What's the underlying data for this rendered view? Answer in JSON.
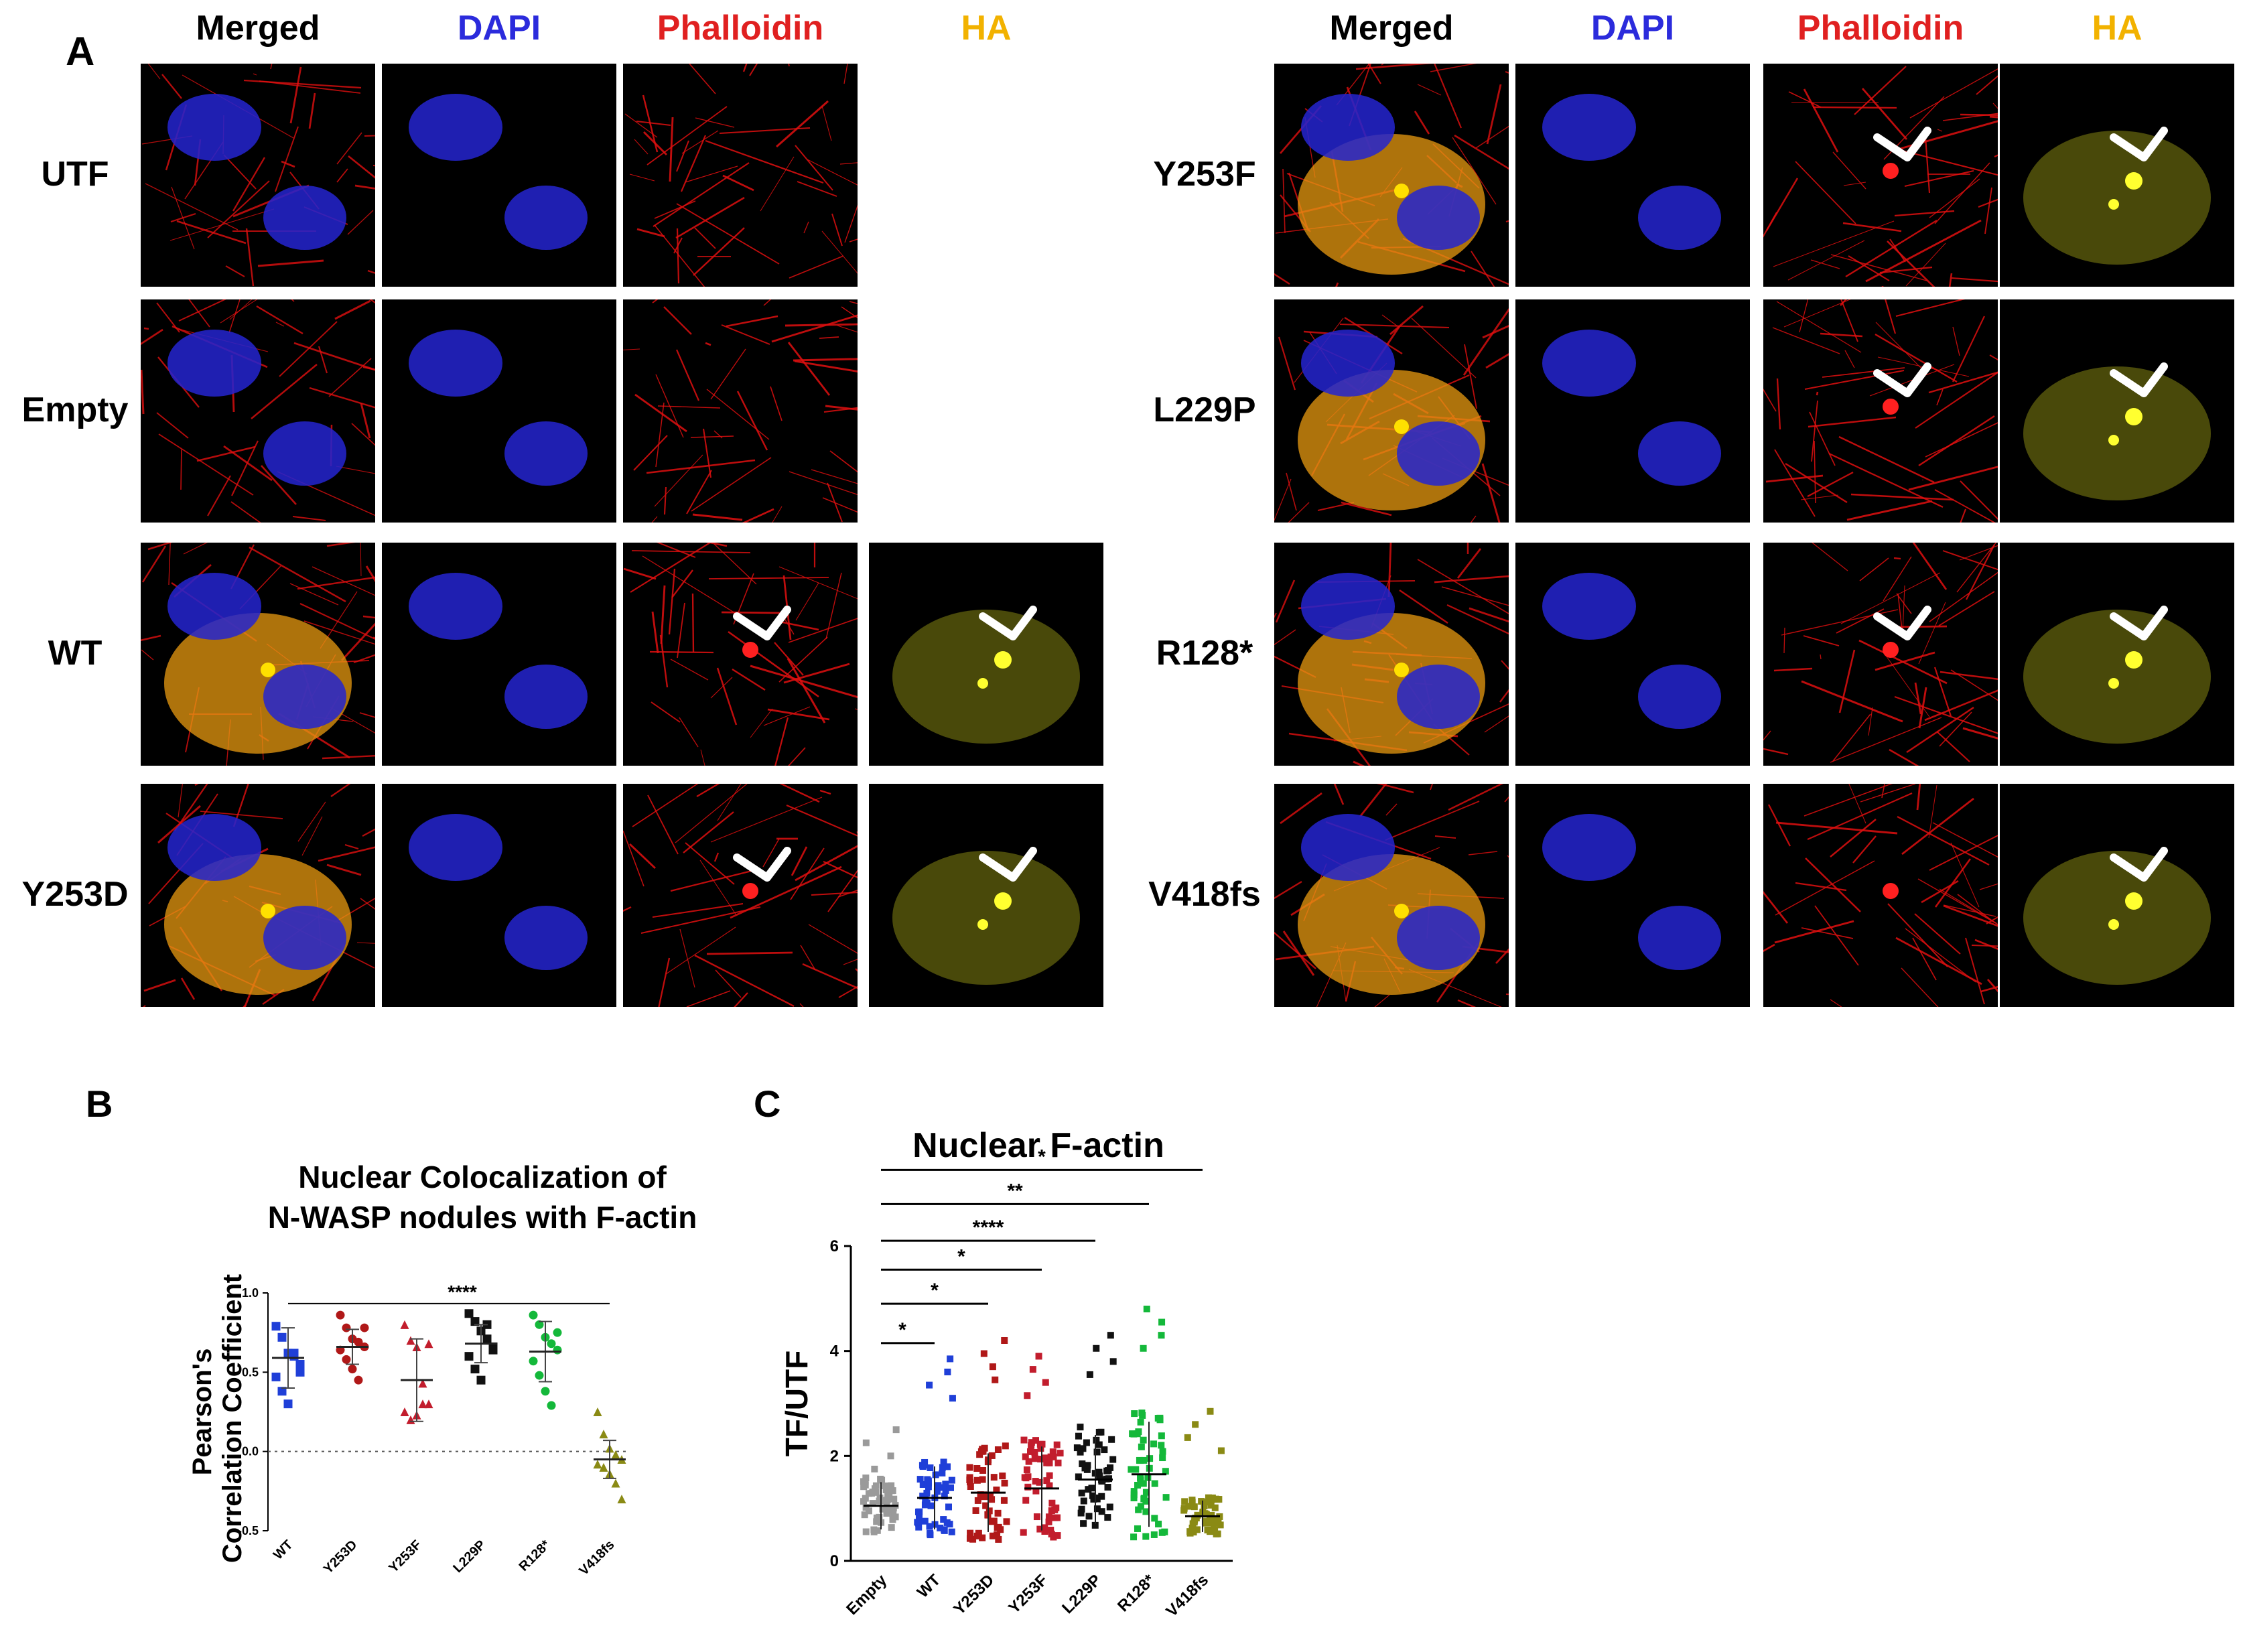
{
  "panel_a": {
    "letter": "A",
    "left_headers": [
      "Merged",
      "DAPI",
      "Phalloidin",
      "HA"
    ],
    "right_headers": [
      "Merged",
      "DAPI",
      "Phalloidin",
      "HA"
    ],
    "left_rows": [
      "UTF",
      "Empty",
      "WT",
      "Y253D"
    ],
    "right_rows": [
      "Y253F",
      "L229P",
      "R128*",
      "V418fs"
    ],
    "colors": {
      "merged": "#000000",
      "dapi": "#2b2bdc",
      "phalloidin": "#e02020",
      "ha": "#f2b200"
    }
  },
  "panel_b": {
    "letter": "B",
    "title_line1": "Nuclear Colocalization of",
    "title_line2": "N-WASP nodules with F-actin",
    "ylabel_line1": "Pearson's",
    "ylabel_line2": "Correlation Coefficient",
    "significance": "****"
  },
  "panel_c": {
    "letter": "C",
    "title": "Nuclear F-actin",
    "ylabel": "TF/UTF",
    "significance": [
      "*",
      "*",
      "*",
      "****",
      "**",
      "*"
    ]
  },
  "chart_data": [
    {
      "type": "scatter",
      "title": "Nuclear Colocalization of N-WASP nodules with F-actin",
      "ylabel": "Pearson's Correlation Coefficient",
      "ylim": [
        -0.5,
        1.0
      ],
      "yticks": [
        "-0.5",
        "0.0",
        "0.5",
        "1.0"
      ],
      "categories": [
        "WT",
        "Y253D",
        "Y253F",
        "L229P",
        "R128*",
        "V418fs"
      ],
      "colors": [
        "#1f3fd8",
        "#b01818",
        "#c21d2d",
        "#111111",
        "#14b83a",
        "#8a8a14"
      ],
      "means": [
        0.59,
        0.66,
        0.45,
        0.68,
        0.63,
        -0.05
      ],
      "sd": [
        0.19,
        0.11,
        0.26,
        0.12,
        0.19,
        0.12
      ],
      "points": [
        [
          0.79,
          0.72,
          0.62,
          0.6,
          0.55,
          0.47,
          0.38,
          0.3,
          0.62,
          0.5
        ],
        [
          0.86,
          0.78,
          0.71,
          0.69,
          0.66,
          0.64,
          0.58,
          0.52,
          0.45,
          0.78
        ],
        [
          0.8,
          0.7,
          0.66,
          0.43,
          0.3,
          0.25,
          0.2,
          0.23,
          0.3,
          0.68
        ],
        [
          0.87,
          0.82,
          0.76,
          0.71,
          0.66,
          0.6,
          0.52,
          0.45,
          0.8,
          0.64
        ],
        [
          0.86,
          0.8,
          0.72,
          0.68,
          0.64,
          0.57,
          0.48,
          0.38,
          0.29,
          0.75
        ],
        [
          0.25,
          0.11,
          0.02,
          -0.02,
          -0.05,
          -0.08,
          -0.1,
          -0.14,
          -0.2,
          -0.3
        ]
      ],
      "annotations": [
        "****"
      ]
    },
    {
      "type": "scatter",
      "title": "Nuclear F-actin",
      "ylabel": "TF/UTF",
      "ylim": [
        0,
        6
      ],
      "yticks": [
        "0",
        "2",
        "4",
        "6"
      ],
      "categories": [
        "Empty",
        "WT",
        "Y253D",
        "Y253F",
        "L229P",
        "R128*",
        "V418fs"
      ],
      "colors": [
        "#9a9a9a",
        "#1f3fd8",
        "#b01818",
        "#c21d2d",
        "#111111",
        "#14b83a",
        "#8a8a14"
      ],
      "means": [
        1.05,
        1.2,
        1.3,
        1.38,
        1.55,
        1.65,
        0.85
      ],
      "sd": [
        0.45,
        0.6,
        0.75,
        0.8,
        0.85,
        1.0,
        0.3
      ],
      "max": [
        2.5,
        3.85,
        4.2,
        3.9,
        4.3,
        4.8,
        2.85
      ],
      "annotations": [
        "*",
        "*",
        "*",
        "****",
        "**",
        "*"
      ]
    }
  ]
}
